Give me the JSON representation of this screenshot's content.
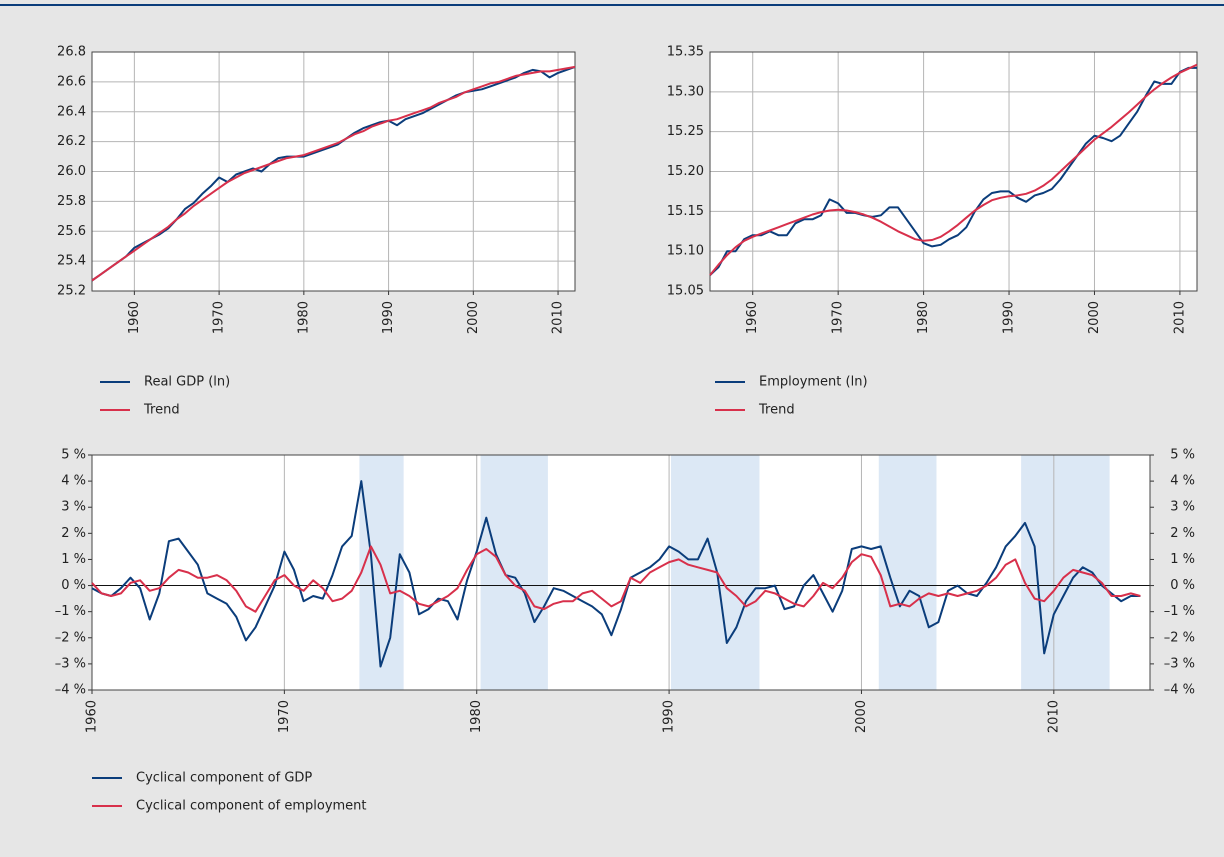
{
  "chart_data": [
    {
      "type": "line",
      "x": [
        1955,
        1956,
        1957,
        1958,
        1959,
        1960,
        1961,
        1962,
        1963,
        1964,
        1965,
        1966,
        1967,
        1968,
        1969,
        1970,
        1971,
        1972,
        1973,
        1974,
        1975,
        1976,
        1977,
        1978,
        1979,
        1980,
        1981,
        1982,
        1983,
        1984,
        1985,
        1986,
        1987,
        1988,
        1989,
        1990,
        1991,
        1992,
        1993,
        1994,
        1995,
        1996,
        1997,
        1998,
        1999,
        2000,
        2001,
        2002,
        2003,
        2004,
        2005,
        2006,
        2007,
        2008,
        2009,
        2010,
        2011,
        2012
      ],
      "series": [
        {
          "name": "Real GDP (ln)",
          "color": "#0b3d7b",
          "values": [
            25.27,
            25.31,
            25.35,
            25.39,
            25.43,
            25.49,
            25.52,
            25.55,
            25.58,
            25.62,
            25.68,
            25.75,
            25.79,
            25.85,
            25.9,
            25.96,
            25.93,
            25.98,
            26.0,
            26.02,
            26.0,
            26.05,
            26.09,
            26.1,
            26.1,
            26.1,
            26.12,
            26.14,
            26.16,
            26.18,
            26.22,
            26.26,
            26.29,
            26.31,
            26.33,
            26.34,
            26.31,
            26.35,
            26.37,
            26.39,
            26.42,
            26.45,
            26.48,
            26.51,
            26.53,
            26.54,
            26.55,
            26.57,
            26.59,
            26.61,
            26.63,
            26.66,
            26.68,
            26.67,
            26.63,
            26.66,
            26.68,
            26.7
          ]
        },
        {
          "name": "Trend",
          "color": "#d8304b",
          "values": [
            25.27,
            25.31,
            25.35,
            25.39,
            25.43,
            25.47,
            25.51,
            25.55,
            25.59,
            25.63,
            25.68,
            25.72,
            25.77,
            25.81,
            25.85,
            25.89,
            25.93,
            25.96,
            25.99,
            26.01,
            26.03,
            26.05,
            26.07,
            26.09,
            26.1,
            26.11,
            26.13,
            26.15,
            26.17,
            26.19,
            26.22,
            26.25,
            26.27,
            26.3,
            26.32,
            26.34,
            26.35,
            26.37,
            26.39,
            26.41,
            26.43,
            26.46,
            26.48,
            26.5,
            26.53,
            26.55,
            26.57,
            26.59,
            26.6,
            26.62,
            26.64,
            26.65,
            26.66,
            26.67,
            26.67,
            26.68,
            26.69,
            26.7
          ]
        }
      ],
      "xlim": [
        1955,
        2012
      ],
      "xticks": [
        1960,
        1970,
        1980,
        1990,
        2000,
        2010
      ],
      "ylim": [
        25.2,
        26.8
      ],
      "yticks": [
        25.2,
        25.4,
        25.6,
        25.8,
        {
          "value": 26,
          "label": "26.0"
        },
        26.2,
        26.4,
        26.6,
        26.8
      ],
      "grid": true,
      "xgrid": true
    },
    {
      "type": "line",
      "x": [
        1955,
        1956,
        1957,
        1958,
        1959,
        1960,
        1961,
        1962,
        1963,
        1964,
        1965,
        1966,
        1967,
        1968,
        1969,
        1970,
        1971,
        1972,
        1973,
        1974,
        1975,
        1976,
        1977,
        1978,
        1979,
        1980,
        1981,
        1982,
        1983,
        1984,
        1985,
        1986,
        1987,
        1988,
        1989,
        1990,
        1991,
        1992,
        1993,
        1994,
        1995,
        1996,
        1997,
        1998,
        1999,
        2000,
        2001,
        2002,
        2003,
        2004,
        2005,
        2006,
        2007,
        2008,
        2009,
        2010,
        2011,
        2012
      ],
      "series": [
        {
          "name": "Employment (ln)",
          "color": "#0b3d7b",
          "values": [
            15.07,
            15.08,
            15.1,
            15.1,
            15.115,
            15.12,
            15.12,
            15.125,
            15.12,
            15.12,
            15.135,
            15.14,
            15.14,
            15.145,
            15.165,
            15.16,
            15.148,
            15.148,
            15.145,
            15.143,
            15.145,
            15.155,
            15.155,
            15.14,
            15.125,
            15.11,
            15.106,
            15.108,
            15.115,
            15.12,
            15.13,
            15.15,
            15.165,
            15.173,
            15.175,
            15.175,
            15.167,
            15.162,
            15.17,
            15.173,
            15.178,
            15.19,
            15.205,
            15.22,
            15.235,
            15.245,
            15.242,
            15.238,
            15.245,
            15.26,
            15.275,
            15.295,
            15.313,
            15.31,
            15.31,
            15.325,
            15.33,
            15.33
          ]
        },
        {
          "name": "Trend",
          "color": "#d8304b",
          "values": [
            15.07,
            15.083,
            15.095,
            15.105,
            15.113,
            15.118,
            15.122,
            15.126,
            15.13,
            15.134,
            15.138,
            15.142,
            15.146,
            15.149,
            15.151,
            15.152,
            15.151,
            15.149,
            15.146,
            15.142,
            15.137,
            15.131,
            15.125,
            15.12,
            15.115,
            15.113,
            15.114,
            15.118,
            15.125,
            15.133,
            15.142,
            15.151,
            15.158,
            15.164,
            15.167,
            15.169,
            15.17,
            15.172,
            15.176,
            15.182,
            15.19,
            15.2,
            15.21,
            15.22,
            15.23,
            15.24,
            15.248,
            15.256,
            15.265,
            15.274,
            15.284,
            15.294,
            15.303,
            15.311,
            15.318,
            15.324,
            15.329,
            15.334
          ]
        }
      ],
      "xlim": [
        1955,
        2012
      ],
      "xticks": [
        1960,
        1970,
        1980,
        1990,
        2000,
        2010
      ],
      "ylim": [
        15.05,
        15.35
      ],
      "yticks": [
        15.05,
        {
          "value": 15.1,
          "label": "15.10"
        },
        15.15,
        {
          "value": 15.2,
          "label": "15.20"
        },
        15.25,
        {
          "value": 15.3,
          "label": "15.30"
        },
        15.35
      ],
      "grid": true,
      "xgrid": true
    },
    {
      "type": "line",
      "x": [
        1960,
        1960.5,
        1961,
        1961.5,
        1962,
        1962.5,
        1963,
        1963.5,
        1964,
        1964.5,
        1965,
        1965.5,
        1966,
        1966.5,
        1967,
        1967.5,
        1968,
        1968.5,
        1969,
        1969.5,
        1970,
        1970.5,
        1971,
        1971.5,
        1972,
        1972.5,
        1973,
        1973.5,
        1974,
        1974.5,
        1975,
        1975.5,
        1976,
        1976.5,
        1977,
        1977.5,
        1978,
        1978.5,
        1979,
        1979.5,
        1980,
        1980.5,
        1981,
        1981.5,
        1982,
        1982.5,
        1983,
        1983.5,
        1984,
        1984.5,
        1985,
        1985.5,
        1986,
        1986.5,
        1987,
        1987.5,
        1988,
        1988.5,
        1989,
        1989.5,
        1990,
        1990.5,
        1991,
        1991.5,
        1992,
        1992.5,
        1993,
        1993.5,
        1994,
        1994.5,
        1995,
        1995.5,
        1996,
        1996.5,
        1997,
        1997.5,
        1998,
        1998.5,
        1999,
        1999.5,
        2000,
        2000.5,
        2001,
        2001.5,
        2002,
        2002.5,
        2003,
        2003.5,
        2004,
        2004.5,
        2005,
        2005.5,
        2006,
        2006.5,
        2007,
        2007.5,
        2008,
        2008.5,
        2009,
        2009.5,
        2010,
        2010.5,
        2011,
        2011.5,
        2012,
        2012.5,
        2013,
        2013.5,
        2014,
        2014.5
      ],
      "series": [
        {
          "name": "Cyclical component of GDP",
          "color": "#0b3d7b",
          "values": [
            -0.1,
            -0.3,
            -0.4,
            -0.1,
            0.3,
            -0.1,
            -1.3,
            -0.3,
            1.7,
            1.8,
            1.3,
            0.8,
            -0.3,
            -0.5,
            -0.7,
            -1.2,
            -2.1,
            -1.6,
            -0.8,
            0.0,
            1.3,
            0.6,
            -0.6,
            -0.4,
            -0.5,
            0.4,
            1.5,
            1.9,
            4.0,
            1.2,
            -3.1,
            -2.0,
            1.2,
            0.5,
            -1.1,
            -0.9,
            -0.5,
            -0.6,
            -1.3,
            0.2,
            1.3,
            2.6,
            1.2,
            0.4,
            0.3,
            -0.3,
            -1.4,
            -0.8,
            -0.1,
            -0.2,
            -0.4,
            -0.6,
            -0.8,
            -1.1,
            -1.9,
            -0.9,
            0.3,
            0.5,
            0.7,
            1.0,
            1.5,
            1.3,
            1.0,
            1.0,
            1.8,
            0.5,
            -2.2,
            -1.6,
            -0.6,
            -0.1,
            -0.1,
            0.0,
            -0.9,
            -0.8,
            0.0,
            0.4,
            -0.3,
            -1.0,
            -0.2,
            1.4,
            1.5,
            1.4,
            1.5,
            0.3,
            -0.8,
            -0.2,
            -0.4,
            -1.6,
            -1.4,
            -0.2,
            0.0,
            -0.3,
            -0.4,
            0.1,
            0.7,
            1.5,
            1.9,
            2.4,
            1.5,
            -2.6,
            -1.1,
            -0.4,
            0.3,
            0.7,
            0.5,
            0.0,
            -0.3,
            -0.6,
            -0.4,
            -0.4
          ]
        },
        {
          "name": "Cyclical component of employment",
          "color": "#d8304b",
          "values": [
            0.1,
            -0.3,
            -0.4,
            -0.3,
            0.1,
            0.2,
            -0.2,
            -0.1,
            0.3,
            0.6,
            0.5,
            0.3,
            0.3,
            0.4,
            0.2,
            -0.2,
            -0.8,
            -1.0,
            -0.4,
            0.2,
            0.4,
            0.0,
            -0.2,
            0.2,
            -0.1,
            -0.6,
            -0.5,
            -0.2,
            0.5,
            1.5,
            0.8,
            -0.3,
            -0.2,
            -0.4,
            -0.7,
            -0.8,
            -0.6,
            -0.4,
            -0.1,
            0.6,
            1.2,
            1.4,
            1.1,
            0.4,
            0.0,
            -0.2,
            -0.8,
            -0.9,
            -0.7,
            -0.6,
            -0.6,
            -0.3,
            -0.2,
            -0.5,
            -0.8,
            -0.6,
            0.3,
            0.1,
            0.5,
            0.7,
            0.9,
            1.0,
            0.8,
            0.7,
            0.6,
            0.5,
            -0.1,
            -0.4,
            -0.8,
            -0.6,
            -0.2,
            -0.3,
            -0.5,
            -0.7,
            -0.8,
            -0.4,
            0.1,
            -0.1,
            0.3,
            0.9,
            1.2,
            1.1,
            0.4,
            -0.8,
            -0.7,
            -0.8,
            -0.5,
            -0.3,
            -0.4,
            -0.3,
            -0.4,
            -0.3,
            -0.2,
            0.0,
            0.3,
            0.8,
            1.0,
            0.1,
            -0.5,
            -0.6,
            -0.2,
            0.3,
            0.6,
            0.5,
            0.4,
            0.1,
            -0.4,
            -0.4,
            -0.3,
            -0.4
          ]
        }
      ],
      "xlim": [
        1960,
        2015
      ],
      "xticks": [
        1960,
        1970,
        1980,
        1990,
        2000,
        2010
      ],
      "ylim": [
        -4,
        5
      ],
      "yticks": [
        {
          "value": -4,
          "label": "–4 %"
        },
        {
          "value": -3,
          "label": "–3 %"
        },
        {
          "value": -2,
          "label": "–2 %"
        },
        {
          "value": -1,
          "label": "–1 %"
        },
        {
          "value": 0,
          "label": "0 %"
        },
        {
          "value": 1,
          "label": "1 %"
        },
        {
          "value": 2,
          "label": "2 %"
        },
        {
          "value": 3,
          "label": "3 %"
        },
        {
          "value": 4,
          "label": "4 %"
        },
        {
          "value": 5,
          "label": "5 %"
        }
      ],
      "y2lim": [
        -4,
        5
      ],
      "y2ticks": [
        {
          "value": -4,
          "label": "–4 %"
        },
        {
          "value": -3,
          "label": "–3 %"
        },
        {
          "value": -2,
          "label": "–2 %"
        },
        {
          "value": -1,
          "label": "–1 %"
        },
        {
          "value": 0,
          "label": "0 %"
        },
        {
          "value": 1,
          "label": "1 %"
        },
        {
          "value": 2,
          "label": "2 %"
        },
        {
          "value": 3,
          "label": "3 %"
        },
        {
          "value": 4,
          "label": "4 %"
        },
        {
          "value": 5,
          "label": "5 %"
        }
      ],
      "shaded_periods": [
        [
          1973.9,
          1976.2
        ],
        [
          1980.2,
          1983.7
        ],
        [
          1990.1,
          1994.7
        ],
        [
          2000.9,
          2003.9
        ],
        [
          2008.3,
          2012.9
        ]
      ],
      "shade_color": "#dce8f5",
      "grid": false,
      "xgrid": true,
      "zero_line": true
    }
  ]
}
